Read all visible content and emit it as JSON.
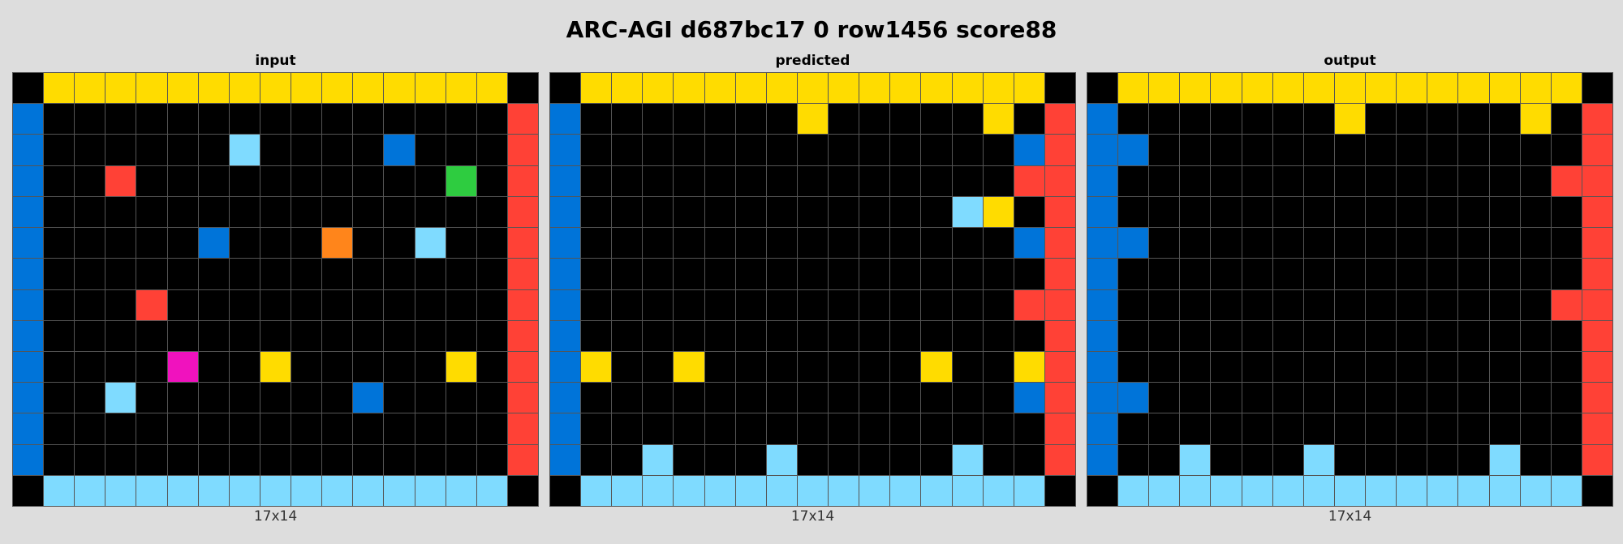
{
  "title": "ARC-AGI d687bc17 0 row1456 score88",
  "palette": {
    "0": "#000000",
    "1": "#0074D9",
    "2": "#FF4136",
    "3": "#2ECC40",
    "4": "#FFDC00",
    "5": "#AAAAAA",
    "6": "#F012BE",
    "7": "#FF851B",
    "8": "#7FDBFF",
    "9": "#870C25"
  },
  "panels": [
    {
      "title": "input",
      "size": "17x14",
      "grid": [
        [
          0,
          4,
          4,
          4,
          4,
          4,
          4,
          4,
          4,
          4,
          4,
          4,
          4,
          4,
          4,
          4,
          0
        ],
        [
          1,
          0,
          0,
          0,
          0,
          0,
          0,
          0,
          0,
          0,
          0,
          0,
          0,
          0,
          0,
          0,
          2
        ],
        [
          1,
          0,
          0,
          0,
          0,
          0,
          0,
          8,
          0,
          0,
          0,
          0,
          1,
          0,
          0,
          0,
          2
        ],
        [
          1,
          0,
          0,
          2,
          0,
          0,
          0,
          0,
          0,
          0,
          0,
          0,
          0,
          0,
          3,
          0,
          2
        ],
        [
          1,
          0,
          0,
          0,
          0,
          0,
          0,
          0,
          0,
          0,
          0,
          0,
          0,
          0,
          0,
          0,
          2
        ],
        [
          1,
          0,
          0,
          0,
          0,
          0,
          1,
          0,
          0,
          0,
          7,
          0,
          0,
          8,
          0,
          0,
          2
        ],
        [
          1,
          0,
          0,
          0,
          0,
          0,
          0,
          0,
          0,
          0,
          0,
          0,
          0,
          0,
          0,
          0,
          2
        ],
        [
          1,
          0,
          0,
          0,
          2,
          0,
          0,
          0,
          0,
          0,
          0,
          0,
          0,
          0,
          0,
          0,
          2
        ],
        [
          1,
          0,
          0,
          0,
          0,
          0,
          0,
          0,
          0,
          0,
          0,
          0,
          0,
          0,
          0,
          0,
          2
        ],
        [
          1,
          0,
          0,
          0,
          0,
          6,
          0,
          0,
          4,
          0,
          0,
          0,
          0,
          0,
          4,
          0,
          2
        ],
        [
          1,
          0,
          0,
          8,
          0,
          0,
          0,
          0,
          0,
          0,
          0,
          1,
          0,
          0,
          0,
          0,
          2
        ],
        [
          1,
          0,
          0,
          0,
          0,
          0,
          0,
          0,
          0,
          0,
          0,
          0,
          0,
          0,
          0,
          0,
          2
        ],
        [
          1,
          0,
          0,
          0,
          0,
          0,
          0,
          0,
          0,
          0,
          0,
          0,
          0,
          0,
          0,
          0,
          2
        ],
        [
          0,
          8,
          8,
          8,
          8,
          8,
          8,
          8,
          8,
          8,
          8,
          8,
          8,
          8,
          8,
          8,
          0
        ]
      ]
    },
    {
      "title": "predicted",
      "size": "17x14",
      "grid": [
        [
          0,
          4,
          4,
          4,
          4,
          4,
          4,
          4,
          4,
          4,
          4,
          4,
          4,
          4,
          4,
          4,
          0
        ],
        [
          1,
          0,
          0,
          0,
          0,
          0,
          0,
          0,
          4,
          0,
          0,
          0,
          0,
          0,
          4,
          0,
          2
        ],
        [
          1,
          0,
          0,
          0,
          0,
          0,
          0,
          0,
          0,
          0,
          0,
          0,
          0,
          0,
          0,
          1,
          2
        ],
        [
          1,
          0,
          0,
          0,
          0,
          0,
          0,
          0,
          0,
          0,
          0,
          0,
          0,
          0,
          0,
          2,
          2
        ],
        [
          1,
          0,
          0,
          0,
          0,
          0,
          0,
          0,
          0,
          0,
          0,
          0,
          0,
          8,
          4,
          0,
          2
        ],
        [
          1,
          0,
          0,
          0,
          0,
          0,
          0,
          0,
          0,
          0,
          0,
          0,
          0,
          0,
          0,
          1,
          2
        ],
        [
          1,
          0,
          0,
          0,
          0,
          0,
          0,
          0,
          0,
          0,
          0,
          0,
          0,
          0,
          0,
          0,
          2
        ],
        [
          1,
          0,
          0,
          0,
          0,
          0,
          0,
          0,
          0,
          0,
          0,
          0,
          0,
          0,
          0,
          2,
          2
        ],
        [
          1,
          0,
          0,
          0,
          0,
          0,
          0,
          0,
          0,
          0,
          0,
          0,
          0,
          0,
          0,
          0,
          2
        ],
        [
          1,
          4,
          0,
          0,
          4,
          0,
          0,
          0,
          0,
          0,
          0,
          0,
          4,
          0,
          0,
          4,
          2
        ],
        [
          1,
          0,
          0,
          0,
          0,
          0,
          0,
          0,
          0,
          0,
          0,
          0,
          0,
          0,
          0,
          1,
          2
        ],
        [
          1,
          0,
          0,
          0,
          0,
          0,
          0,
          0,
          0,
          0,
          0,
          0,
          0,
          0,
          0,
          0,
          2
        ],
        [
          1,
          0,
          0,
          8,
          0,
          0,
          0,
          8,
          0,
          0,
          0,
          0,
          0,
          8,
          0,
          0,
          2
        ],
        [
          0,
          8,
          8,
          8,
          8,
          8,
          8,
          8,
          8,
          8,
          8,
          8,
          8,
          8,
          8,
          8,
          0
        ]
      ]
    },
    {
      "title": "output",
      "size": "17x14",
      "grid": [
        [
          0,
          4,
          4,
          4,
          4,
          4,
          4,
          4,
          4,
          4,
          4,
          4,
          4,
          4,
          4,
          4,
          0
        ],
        [
          1,
          0,
          0,
          0,
          0,
          0,
          0,
          0,
          4,
          0,
          0,
          0,
          0,
          0,
          4,
          0,
          2
        ],
        [
          1,
          1,
          0,
          0,
          0,
          0,
          0,
          0,
          0,
          0,
          0,
          0,
          0,
          0,
          0,
          0,
          2
        ],
        [
          1,
          0,
          0,
          0,
          0,
          0,
          0,
          0,
          0,
          0,
          0,
          0,
          0,
          0,
          0,
          2,
          2
        ],
        [
          1,
          0,
          0,
          0,
          0,
          0,
          0,
          0,
          0,
          0,
          0,
          0,
          0,
          0,
          0,
          0,
          2
        ],
        [
          1,
          1,
          0,
          0,
          0,
          0,
          0,
          0,
          0,
          0,
          0,
          0,
          0,
          0,
          0,
          0,
          2
        ],
        [
          1,
          0,
          0,
          0,
          0,
          0,
          0,
          0,
          0,
          0,
          0,
          0,
          0,
          0,
          0,
          0,
          2
        ],
        [
          1,
          0,
          0,
          0,
          0,
          0,
          0,
          0,
          0,
          0,
          0,
          0,
          0,
          0,
          0,
          2,
          2
        ],
        [
          1,
          0,
          0,
          0,
          0,
          0,
          0,
          0,
          0,
          0,
          0,
          0,
          0,
          0,
          0,
          0,
          2
        ],
        [
          1,
          0,
          0,
          0,
          0,
          0,
          0,
          0,
          0,
          0,
          0,
          0,
          0,
          0,
          0,
          0,
          2
        ],
        [
          1,
          1,
          0,
          0,
          0,
          0,
          0,
          0,
          0,
          0,
          0,
          0,
          0,
          0,
          0,
          0,
          2
        ],
        [
          1,
          0,
          0,
          0,
          0,
          0,
          0,
          0,
          0,
          0,
          0,
          0,
          0,
          0,
          0,
          0,
          2
        ],
        [
          1,
          0,
          0,
          8,
          0,
          0,
          0,
          8,
          0,
          0,
          0,
          0,
          0,
          8,
          0,
          0,
          2
        ],
        [
          0,
          8,
          8,
          8,
          8,
          8,
          8,
          8,
          8,
          8,
          8,
          8,
          8,
          8,
          8,
          8,
          0
        ]
      ]
    }
  ]
}
